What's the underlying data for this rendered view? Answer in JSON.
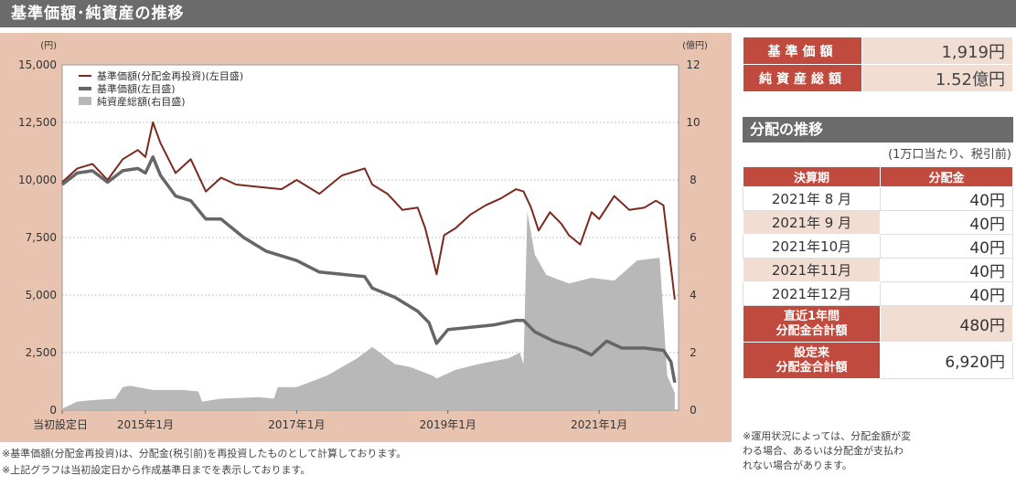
{
  "header": {
    "title": "基準価額･純資産の推移"
  },
  "chart_data": {
    "type": "line",
    "left_unit": "(円)",
    "right_unit": "(億円)",
    "y_left_ticks": [
      "15,000",
      "12,500",
      "10,000",
      "7,500",
      "5,000",
      "2,500",
      "0"
    ],
    "y_right_ticks": [
      "12",
      "10",
      "8",
      "6",
      "4",
      "2",
      "0"
    ],
    "ylim_left": [
      0,
      15000
    ],
    "ylim_right": [
      0,
      12
    ],
    "x_tick_labels": [
      "当初設定日",
      "2015年1月",
      "2017年1月",
      "2019年1月",
      "2021年1月"
    ],
    "x_tick_values": [
      2013.9,
      2015.0,
      2017.0,
      2019.0,
      2021.0
    ],
    "xlim": [
      2013.9,
      2022.05
    ],
    "legend": [
      {
        "label": "基準価額(分配金再投資)(左目盛)",
        "color": "#7a2a1f"
      },
      {
        "label": "基準価額(左目盛)",
        "color": "#666666"
      },
      {
        "label": "純資産総額(右目盛)",
        "color": "#b8b8b8"
      }
    ],
    "series": [
      {
        "name": "基準価額(分配金再投資)(左目盛)",
        "axis": "left",
        "color": "#7a2a1f",
        "x": [
          2013.9,
          2014.1,
          2014.3,
          2014.5,
          2014.7,
          2014.9,
          2015.0,
          2015.1,
          2015.2,
          2015.4,
          2015.6,
          2015.8,
          2016.0,
          2016.2,
          2016.5,
          2016.8,
          2017.0,
          2017.3,
          2017.6,
          2017.9,
          2018.0,
          2018.2,
          2018.4,
          2018.6,
          2018.7,
          2018.85,
          2018.95,
          2019.1,
          2019.3,
          2019.5,
          2019.7,
          2019.9,
          2020.0,
          2020.1,
          2020.2,
          2020.35,
          2020.5,
          2020.6,
          2020.75,
          2020.9,
          2021.0,
          2021.2,
          2021.4,
          2021.6,
          2021.75,
          2021.85,
          2021.95,
          2022.0
        ],
        "y": [
          9900,
          10500,
          10700,
          10000,
          10900,
          11300,
          11000,
          12500,
          11600,
          10300,
          10900,
          9500,
          10100,
          9800,
          9700,
          9600,
          10000,
          9400,
          10200,
          10500,
          9800,
          9400,
          8700,
          8800,
          7900,
          5900,
          7600,
          7900,
          8500,
          8900,
          9200,
          9600,
          9500,
          8800,
          7800,
          8600,
          8100,
          7600,
          7200,
          8600,
          8300,
          9300,
          8700,
          8800,
          9100,
          8900,
          6200,
          4800
        ]
      },
      {
        "name": "基準価額(左目盛)",
        "axis": "left",
        "color": "#666666",
        "x": [
          2013.9,
          2014.1,
          2014.3,
          2014.5,
          2014.7,
          2014.9,
          2015.0,
          2015.1,
          2015.2,
          2015.4,
          2015.6,
          2015.8,
          2016.0,
          2016.3,
          2016.6,
          2017.0,
          2017.3,
          2017.6,
          2017.9,
          2018.0,
          2018.3,
          2018.6,
          2018.75,
          2018.85,
          2019.0,
          2019.3,
          2019.6,
          2019.9,
          2020.0,
          2020.15,
          2020.4,
          2020.7,
          2020.9,
          2021.1,
          2021.3,
          2021.6,
          2021.85,
          2021.95,
          2022.0
        ],
        "y": [
          9800,
          10300,
          10400,
          9900,
          10400,
          10500,
          10300,
          11000,
          10200,
          9300,
          9100,
          8300,
          8300,
          7500,
          6900,
          6500,
          6000,
          5900,
          5800,
          5300,
          4900,
          4300,
          3800,
          2900,
          3500,
          3600,
          3700,
          3900,
          3900,
          3400,
          3000,
          2700,
          2400,
          3000,
          2700,
          2700,
          2600,
          2100,
          1200
        ]
      },
      {
        "name": "純資産総額(右目盛)",
        "axis": "right",
        "color": "#b8b8b8",
        "kind": "area",
        "x": [
          2013.9,
          2014.1,
          2014.3,
          2014.6,
          2014.7,
          2014.8,
          2015.0,
          2015.1,
          2015.5,
          2015.7,
          2015.75,
          2016.0,
          2016.5,
          2016.7,
          2016.75,
          2017.0,
          2017.4,
          2017.8,
          2018.0,
          2018.1,
          2018.3,
          2018.5,
          2018.8,
          2018.85,
          2019.1,
          2019.4,
          2019.8,
          2019.95,
          2020.0,
          2020.05,
          2020.15,
          2020.3,
          2020.6,
          2020.9,
          2021.2,
          2021.5,
          2021.8,
          2021.9,
          2022.0
        ],
        "y": [
          0.05,
          0.3,
          0.35,
          0.4,
          0.8,
          0.85,
          0.75,
          0.7,
          0.7,
          0.65,
          0.3,
          0.4,
          0.45,
          0.4,
          0.8,
          0.8,
          1.2,
          1.8,
          2.2,
          2.0,
          1.6,
          1.5,
          1.2,
          1.1,
          1.4,
          1.6,
          1.8,
          2.0,
          1.6,
          6.9,
          5.4,
          4.7,
          4.4,
          4.6,
          4.5,
          5.2,
          5.3,
          1.2,
          0.6
        ]
      }
    ]
  },
  "notes": [
    "※基準価額(分配金再投資)は、分配金(税引前)を再投資したものとして計算しております。",
    "※上記グラフは当初設定日から作成基準日までを表示しております。"
  ],
  "summary": {
    "nav_label": "基準価額",
    "nav_value": "1,919円",
    "assets_label": "純資産総額",
    "assets_value": "1.52億円"
  },
  "distribution": {
    "title": "分配の推移",
    "unit": "(1万口当たり、税引前)",
    "col_period": "決算期",
    "col_amount": "分配金",
    "rows": [
      {
        "period": "2021年 8 月",
        "amount": "40円"
      },
      {
        "period": "2021年 9 月",
        "amount": "40円"
      },
      {
        "period": "2021年10月",
        "amount": "40円"
      },
      {
        "period": "2021年11月",
        "amount": "40円"
      },
      {
        "period": "2021年12月",
        "amount": "40円"
      }
    ],
    "recent_label_1": "直近1年間",
    "recent_label_2": "分配金合計額",
    "recent_value": "480円",
    "total_label_1": "設定来",
    "total_label_2": "分配金合計額",
    "total_value": "6,920円"
  },
  "side_note": [
    "※運用状況によっては、分配金額が変",
    "わる場合、あるいは分配金が支払わ",
    "れない場合があります。"
  ]
}
